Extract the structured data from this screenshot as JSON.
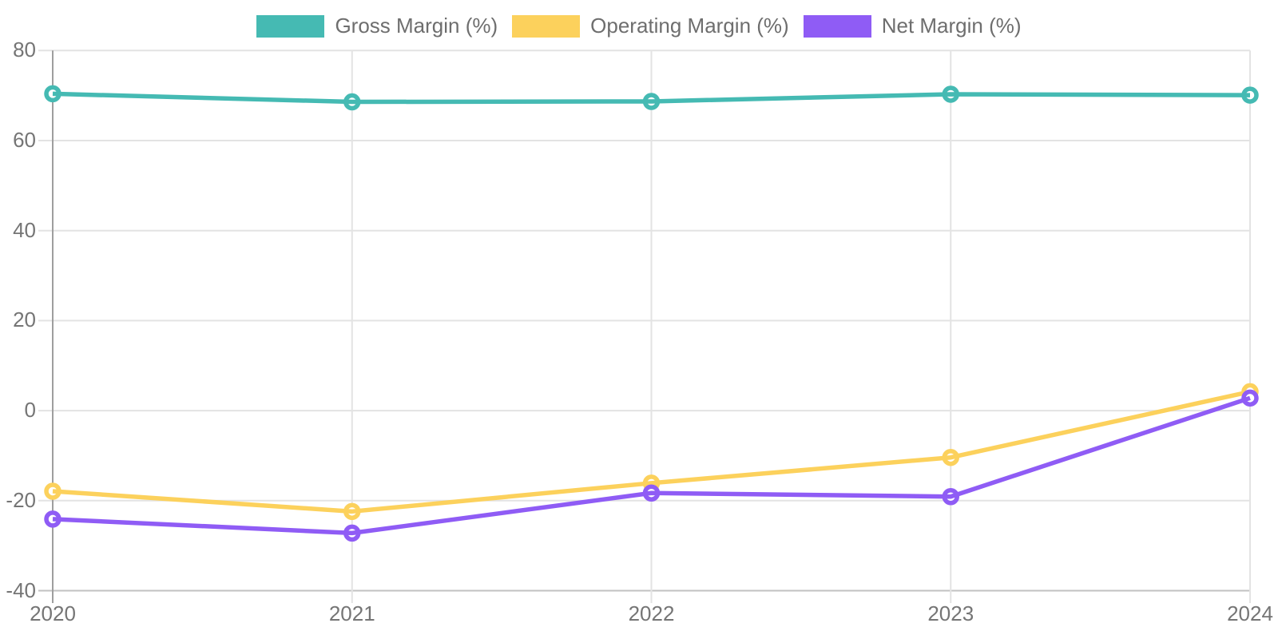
{
  "chart_data": {
    "type": "line",
    "title": "",
    "xlabel": "",
    "ylabel": "",
    "categories": [
      "2020",
      "2021",
      "2022",
      "2023",
      "2024"
    ],
    "series": [
      {
        "name": "Gross Margin (%)",
        "color": "#45bab3",
        "values": [
          70.4,
          68.6,
          68.7,
          70.3,
          70.1
        ]
      },
      {
        "name": "Operating Margin (%)",
        "color": "#fcd15c",
        "values": [
          -17.9,
          -22.4,
          -16.1,
          -10.4,
          4.2
        ]
      },
      {
        "name": "Net Margin (%)",
        "color": "#8f5cf5",
        "values": [
          -24.1,
          -27.2,
          -18.3,
          -19.1,
          2.8
        ]
      }
    ],
    "y_ticks": [
      80,
      60,
      40,
      20,
      0,
      -20,
      -40
    ],
    "ylim": [
      -40,
      80
    ],
    "legend_position": "top",
    "grid": true,
    "point_style": "hollow-circle",
    "colors": {
      "grid": "#e3e3e3",
      "y_axis_line": "#9e9e9e",
      "x_axis_line": "#c2c2c2",
      "tick_label": "#757575",
      "legend_label": "#6e6e6e",
      "background": "#ffffff"
    }
  }
}
